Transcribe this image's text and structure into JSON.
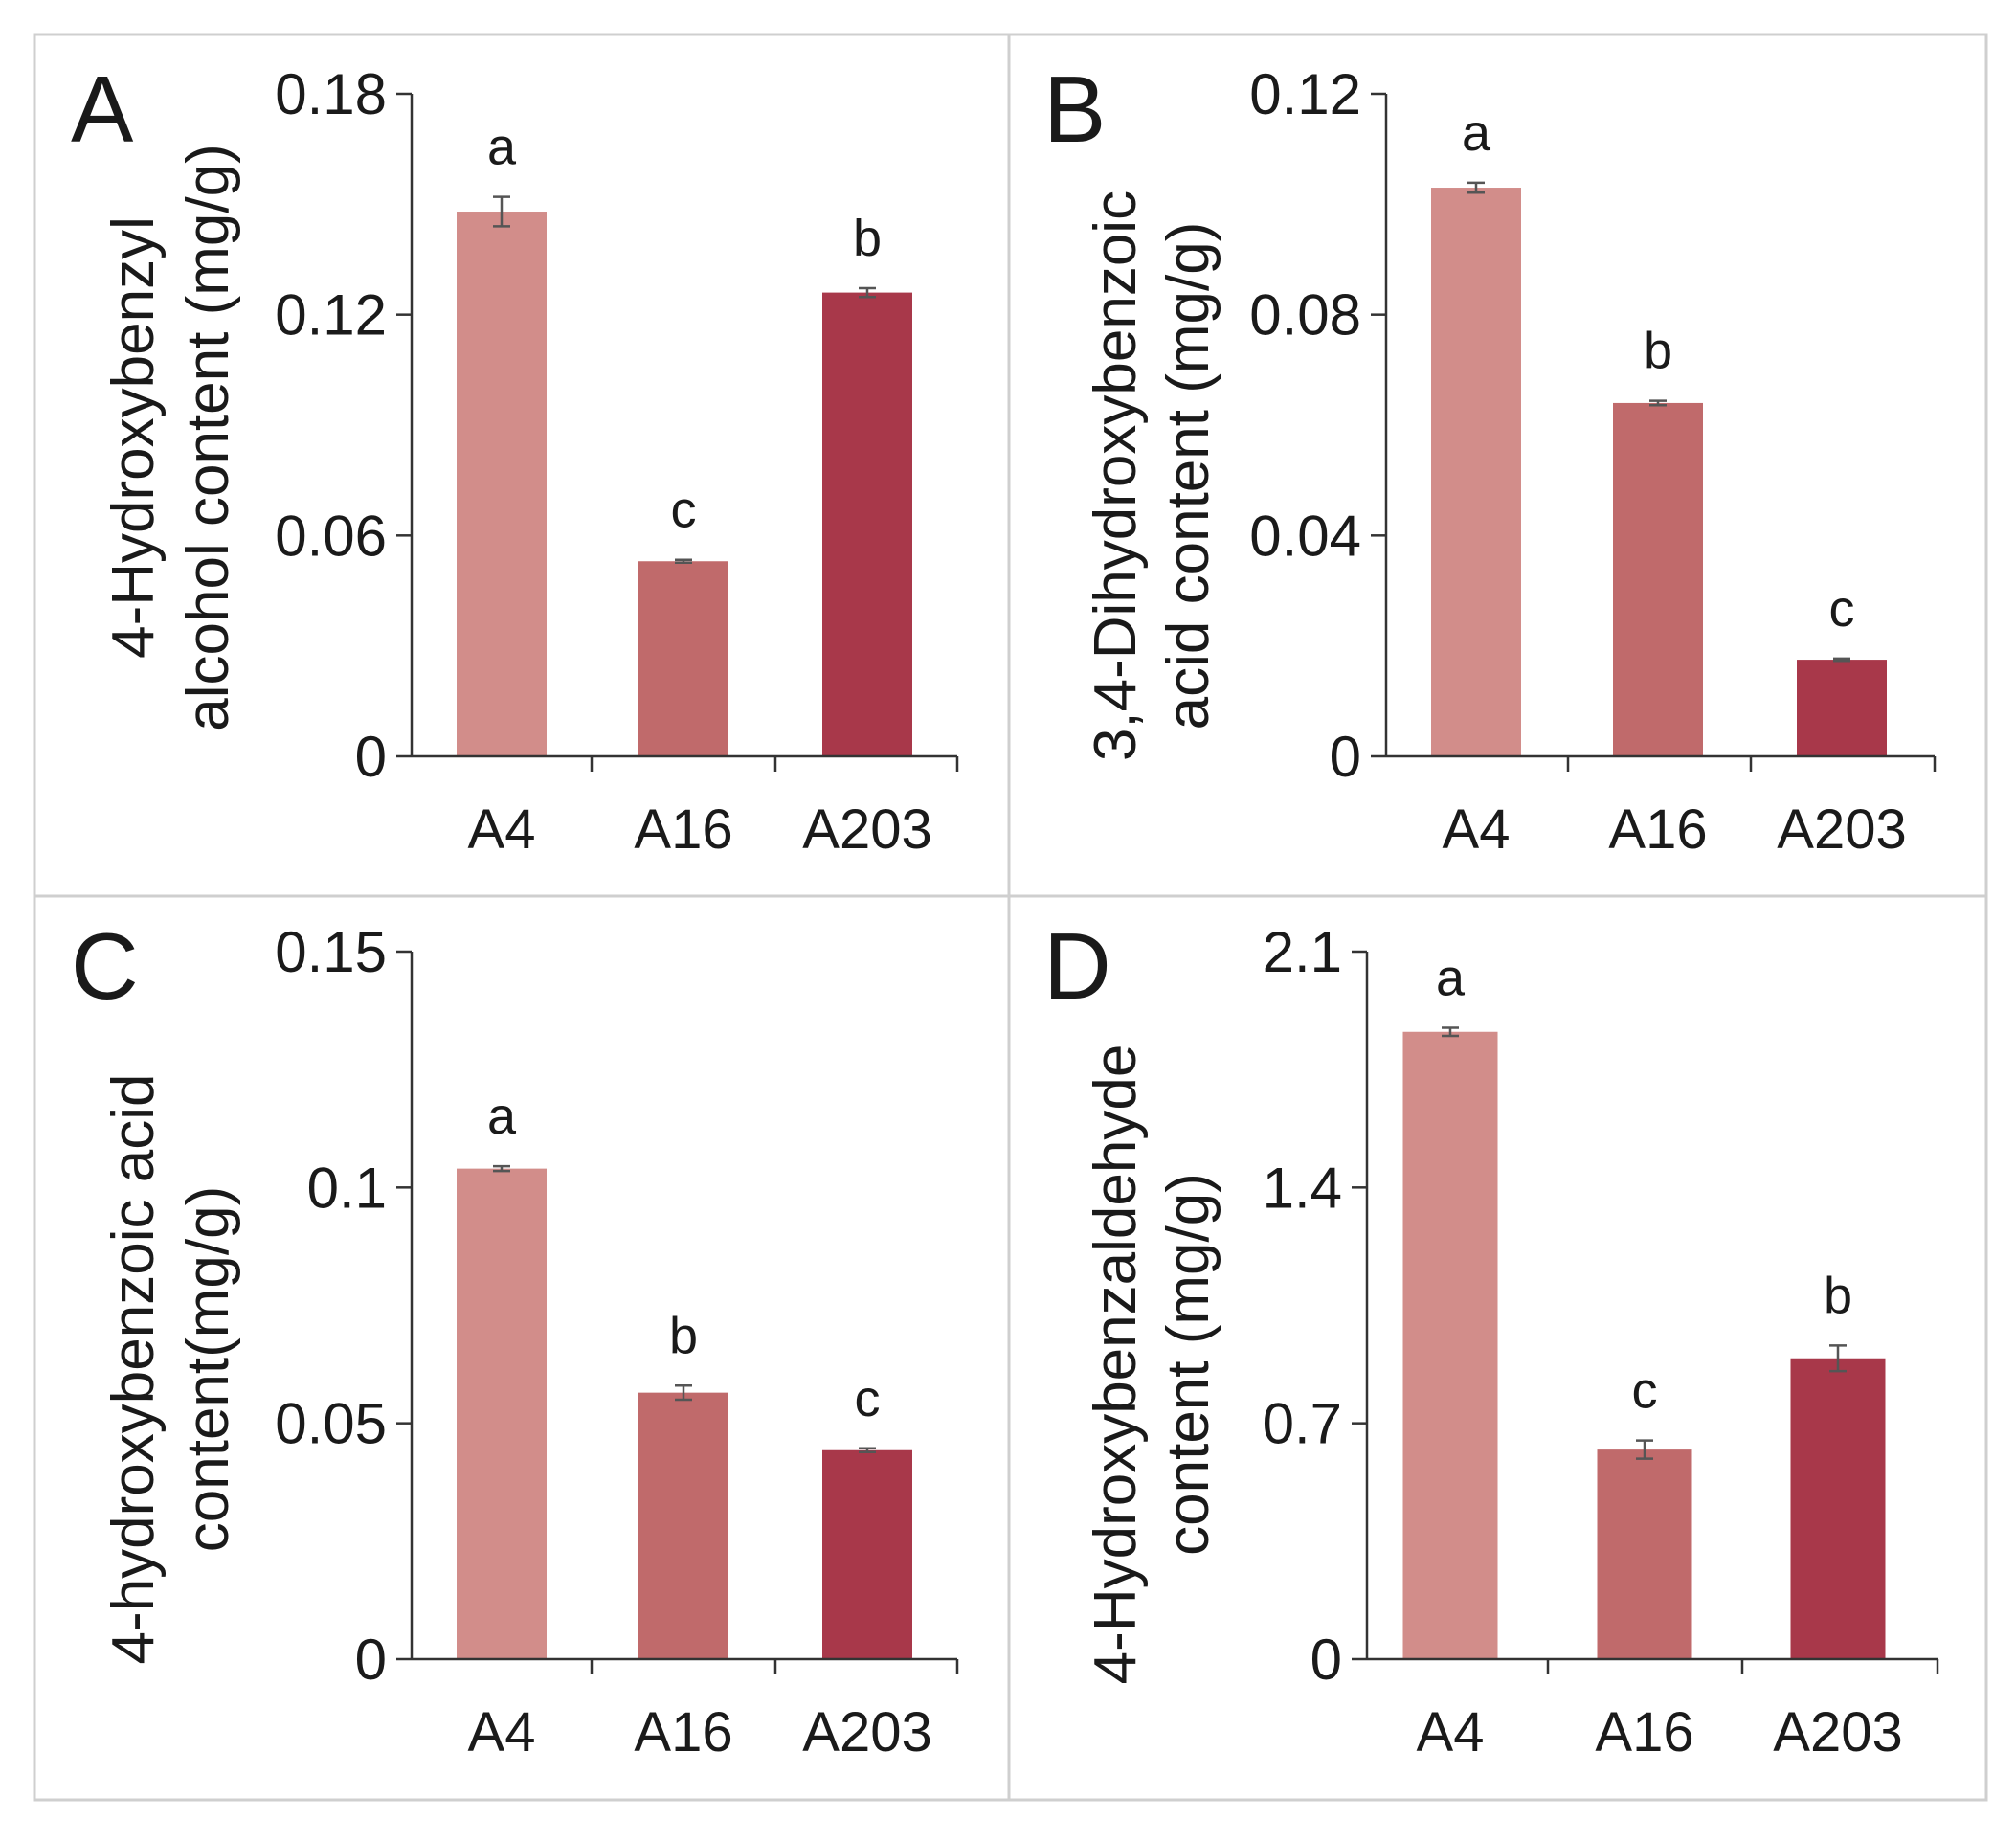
{
  "style": {
    "frame_color": "#CFCFCF",
    "axis_color": "#333333",
    "error_color": "#555555",
    "background": "#FFFFFF"
  },
  "chart_data": [
    {
      "panel": "A",
      "type": "bar",
      "title": "",
      "xlabel": "",
      "ylabel": [
        "4-Hydroxybenzyl",
        "alcohol content (mg/g)"
      ],
      "categories": [
        "A4",
        "A16",
        "A203"
      ],
      "values": [
        0.148,
        0.053,
        0.126
      ],
      "errors": [
        0.004,
        0.0004,
        0.0012
      ],
      "significance": [
        "a",
        "c",
        "b"
      ],
      "colors": [
        "#D28D8A",
        "#C06A6B",
        "#A8384A"
      ],
      "ylim": [
        0,
        0.18
      ],
      "yticks": [
        0,
        0.06,
        0.12,
        0.18
      ],
      "ytick_labels": [
        "0",
        "0.06",
        "0.12",
        "0.18"
      ]
    },
    {
      "panel": "B",
      "type": "bar",
      "title": "",
      "xlabel": "",
      "ylabel": [
        "3,4-Dihydroxybenzoic",
        "acid content (mg/g)"
      ],
      "categories": [
        "A4",
        "A16",
        "A203"
      ],
      "values": [
        0.103,
        0.064,
        0.0175
      ],
      "errors": [
        0.0009,
        0.0004,
        0.0002
      ],
      "significance": [
        "a",
        "b",
        "c"
      ],
      "colors": [
        "#D28D8A",
        "#C06A6B",
        "#A8384A"
      ],
      "ylim": [
        0,
        0.12
      ],
      "yticks": [
        0,
        0.04,
        0.08,
        0.12
      ],
      "ytick_labels": [
        "0",
        "0.04",
        "0.08",
        "0.12"
      ]
    },
    {
      "panel": "C",
      "type": "bar",
      "title": "",
      "xlabel": "",
      "ylabel": [
        "4-hydroxybenzoic acid",
        "content(mg/g)"
      ],
      "categories": [
        "A4",
        "A16",
        "A203"
      ],
      "values": [
        0.104,
        0.0565,
        0.0443
      ],
      "errors": [
        0.0005,
        0.0015,
        0.0004
      ],
      "significance": [
        "a",
        "b",
        "c"
      ],
      "colors": [
        "#D28D8A",
        "#C06A6B",
        "#A8384A"
      ],
      "ylim": [
        0,
        0.15
      ],
      "yticks": [
        0,
        0.05,
        0.1,
        0.15
      ],
      "ytick_labels": [
        "0",
        "0.05",
        "0.1",
        "0.15"
      ]
    },
    {
      "panel": "D",
      "type": "bar",
      "title": "",
      "xlabel": "",
      "ylabel": [
        "4-Hydroxybenzaldehyde",
        "content (mg/g)"
      ],
      "categories": [
        "A4",
        "A16",
        "A203"
      ],
      "values": [
        1.862,
        0.622,
        0.893
      ],
      "errors": [
        0.012,
        0.027,
        0.038
      ],
      "significance": [
        "a",
        "c",
        "b"
      ],
      "colors": [
        "#D28D8A",
        "#C06A6B",
        "#A8384A"
      ],
      "ylim": [
        0,
        2.1
      ],
      "yticks": [
        0,
        0.7,
        1.4,
        2.1
      ],
      "ytick_labels": [
        "0",
        "0.7",
        "1.4",
        "2.1"
      ]
    }
  ]
}
